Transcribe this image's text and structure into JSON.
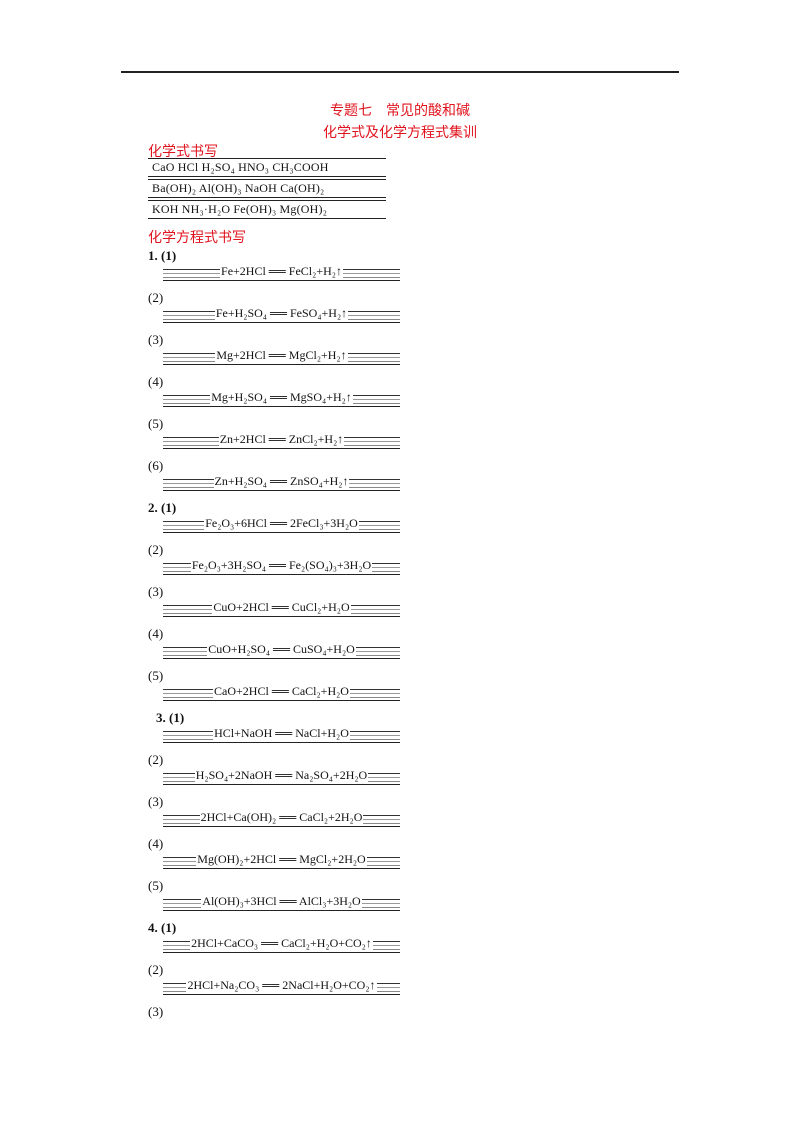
{
  "header": {
    "title1": "专题七　常见的酸和碱",
    "title2": "化学式及化学方程式集训"
  },
  "formula_section": {
    "heading": "化学式书写",
    "rows": [
      "CaO  HCl   H₂SO₄   HNO₃   CH₃COOH",
      "Ba(OH)₂   Al(OH)₃   NaOH   Ca(OH)₂",
      "KOH   NH₃·H₂O   Fe(OH)₃   Mg(OH)₂"
    ]
  },
  "equation_section": {
    "heading": "化学方程式书写",
    "items": [
      {
        "label": "1. (1)",
        "eq": "Fe+2HCl ══ FeCl₂+H₂↑"
      },
      {
        "label": "(2)",
        "eq": "Fe+H₂SO₄ ══ FeSO₄+H₂↑"
      },
      {
        "label": "(3)",
        "eq": "Mg+2HCl ══ MgCl₂+H₂↑"
      },
      {
        "label": "(4)",
        "eq": "Mg+H₂SO₄ ══ MgSO₄+H₂↑"
      },
      {
        "label": "(5)",
        "eq": "Zn+2HCl ══ ZnCl₂+H₂↑"
      },
      {
        "label": "(6)",
        "eq": "Zn+H₂SO₄ ══ ZnSO₄+H₂↑"
      },
      {
        "label": "2. (1)",
        "eq": "Fe₂O₃+6HCl ══ 2FeCl₃+3H₂O"
      },
      {
        "label": "(2)",
        "eq": "Fe₂O₃+3H₂SO₄ ══ Fe₂(SO₄)₃+3H₂O"
      },
      {
        "label": "(3)",
        "eq": "CuO+2HCl ══ CuCl₂+H₂O"
      },
      {
        "label": "(4)",
        "eq": "CuO+H₂SO₄ ══ CuSO₄+H₂O"
      },
      {
        "label": "(5)",
        "eq": "CaO+2HCl ══ CaCl₂+H₂O"
      },
      {
        "label": "3. (1)",
        "eq": "HCl+NaOH ══ NaCl+H₂O"
      },
      {
        "label": "(2)",
        "eq": "H₂SO₄+2NaOH ══ Na₂SO₄+2H₂O"
      },
      {
        "label": "(3)",
        "eq": "2HCl+Ca(OH)₂ ══ CaCl₂+2H₂O"
      },
      {
        "label": "(4)",
        "eq": "Mg(OH)₂+2HCl ══ MgCl₂+2H₂O"
      },
      {
        "label": "(5)",
        "eq": "Al(OH)₃+3HCl ══ AlCl₃+3H₂O"
      },
      {
        "label": "4. (1)",
        "eq": "2HCl+CaCO₃ ══ CaCl₂+H₂O+CO₂↑"
      },
      {
        "label": "(2)",
        "eq": "2HCl+Na₂CO₃ ══ 2NaCl+H₂O+CO₂↑"
      },
      {
        "label": "(3)",
        "eq": ""
      }
    ]
  }
}
